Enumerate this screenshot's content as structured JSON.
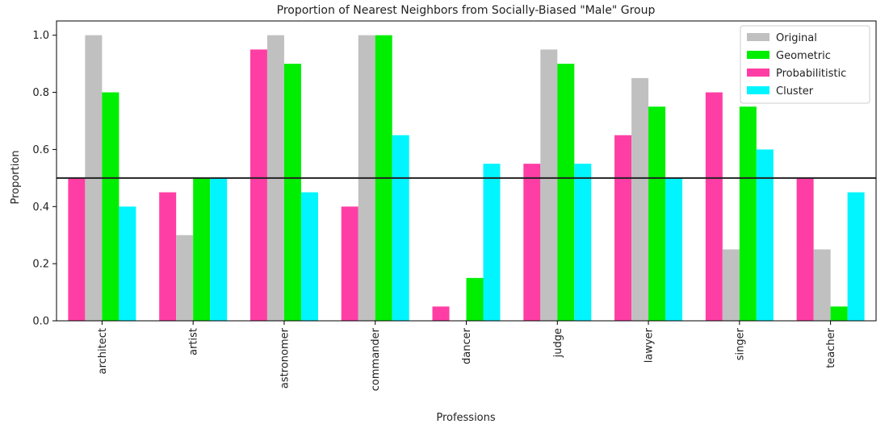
{
  "chart_data": {
    "type": "bar",
    "title": "Proportion of Nearest Neighbors from Socially-Biased \"Male\" Group",
    "xlabel": "Professions",
    "ylabel": "Proportion",
    "ylim": [
      0,
      1.05
    ],
    "yticks": [
      "0.0",
      "0.2",
      "0.4",
      "0.6",
      "0.8",
      "1.0"
    ],
    "reference_line": 0.5,
    "legend_position": "top-right",
    "categories": [
      "architect",
      "artist",
      "astronomer",
      "commander",
      "dancer",
      "judge",
      "lawyer",
      "singer",
      "teacher"
    ],
    "series": [
      {
        "name": "Probabilitistic",
        "color": "#ff3ea5",
        "values": [
          0.5,
          0.45,
          0.95,
          0.4,
          0.05,
          0.55,
          0.65,
          0.8,
          0.5
        ]
      },
      {
        "name": "Original",
        "color": "#c0c0c0",
        "values": [
          1.0,
          0.3,
          1.0,
          1.0,
          0.0,
          0.95,
          0.85,
          0.25,
          0.25
        ]
      },
      {
        "name": "Geometric",
        "color": "#00ee00",
        "values": [
          0.8,
          0.5,
          0.9,
          1.0,
          0.15,
          0.9,
          0.75,
          0.75,
          0.05
        ]
      },
      {
        "name": "Cluster",
        "color": "#00f5ff",
        "values": [
          0.4,
          0.5,
          0.45,
          0.65,
          0.55,
          0.55,
          0.5,
          0.6,
          0.45
        ]
      }
    ],
    "legend_order": [
      "Original",
      "Geometric",
      "Probabilitistic",
      "Cluster"
    ]
  }
}
